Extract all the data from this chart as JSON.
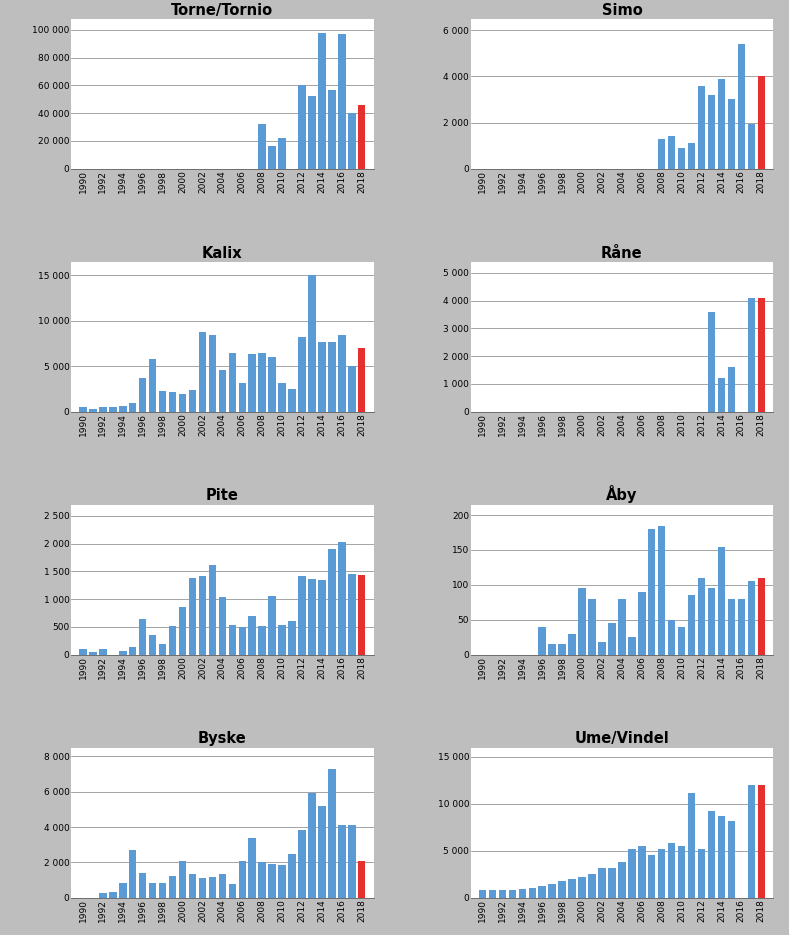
{
  "charts": [
    {
      "title": "Torne/Tornio",
      "years": [
        1990,
        1991,
        1992,
        1993,
        1994,
        1995,
        1996,
        1997,
        1998,
        1999,
        2000,
        2001,
        2002,
        2003,
        2004,
        2005,
        2006,
        2007,
        2008,
        2009,
        2010,
        2011,
        2012,
        2013,
        2014,
        2015,
        2016,
        2017,
        2018
      ],
      "values": [
        0,
        0,
        0,
        0,
        0,
        0,
        0,
        0,
        0,
        0,
        0,
        0,
        0,
        0,
        0,
        0,
        0,
        0,
        32000,
        16000,
        22000,
        0,
        60000,
        52000,
        98000,
        57000,
        97000,
        40000,
        46000
      ],
      "red_years": [
        2018
      ],
      "yticks": [
        0,
        20000,
        40000,
        60000,
        80000,
        100000
      ],
      "ylim": [
        0,
        108000
      ],
      "yticklabels": [
        "0",
        "20 000",
        "40 000",
        "60 000",
        "80 000",
        "100 000"
      ]
    },
    {
      "title": "Simo",
      "years": [
        1990,
        1991,
        1992,
        1993,
        1994,
        1995,
        1996,
        1997,
        1998,
        1999,
        2000,
        2001,
        2002,
        2003,
        2004,
        2005,
        2006,
        2007,
        2008,
        2009,
        2010,
        2011,
        2012,
        2013,
        2014,
        2015,
        2016,
        2017,
        2018
      ],
      "values": [
        0,
        0,
        0,
        0,
        0,
        0,
        0,
        0,
        0,
        0,
        0,
        0,
        0,
        0,
        0,
        0,
        0,
        0,
        1300,
        1400,
        900,
        1100,
        3600,
        3200,
        3900,
        3000,
        5400,
        1950,
        4000
      ],
      "red_years": [
        2018
      ],
      "yticks": [
        0,
        2000,
        4000,
        6000
      ],
      "ylim": [
        0,
        6500
      ],
      "yticklabels": [
        "0",
        "2 000",
        "4 000",
        "6 000"
      ]
    },
    {
      "title": "Kalix",
      "years": [
        1990,
        1991,
        1992,
        1993,
        1994,
        1995,
        1996,
        1997,
        1998,
        1999,
        2000,
        2001,
        2002,
        2003,
        2004,
        2005,
        2006,
        2007,
        2008,
        2009,
        2010,
        2011,
        2012,
        2013,
        2014,
        2015,
        2016,
        2017,
        2018
      ],
      "values": [
        500,
        300,
        500,
        500,
        600,
        900,
        3700,
        5800,
        2300,
        2200,
        1900,
        2400,
        8800,
        8400,
        4600,
        6400,
        3100,
        6300,
        6500,
        6000,
        3100,
        2500,
        8200,
        15000,
        7700,
        7700,
        8400,
        5000,
        7000
      ],
      "red_years": [
        2018
      ],
      "yticks": [
        0,
        5000,
        10000,
        15000
      ],
      "ylim": [
        0,
        16500
      ],
      "yticklabels": [
        "0",
        "5 000",
        "10 000",
        "15 000"
      ]
    },
    {
      "title": "Råne",
      "years": [
        1990,
        1991,
        1992,
        1993,
        1994,
        1995,
        1996,
        1997,
        1998,
        1999,
        2000,
        2001,
        2002,
        2003,
        2004,
        2005,
        2006,
        2007,
        2008,
        2009,
        2010,
        2011,
        2012,
        2013,
        2014,
        2015,
        2016,
        2017,
        2018
      ],
      "values": [
        0,
        0,
        0,
        0,
        0,
        0,
        0,
        0,
        0,
        0,
        0,
        0,
        0,
        0,
        0,
        0,
        0,
        0,
        0,
        0,
        0,
        0,
        0,
        3600,
        1200,
        1600,
        0,
        4100,
        4100
      ],
      "red_years": [
        2018
      ],
      "yticks": [
        0,
        1000,
        2000,
        3000,
        4000,
        5000
      ],
      "ylim": [
        0,
        5400
      ],
      "yticklabels": [
        "0",
        "1 000",
        "2 000",
        "3 000",
        "4 000",
        "5 000"
      ]
    },
    {
      "title": "Pite",
      "years": [
        1990,
        1991,
        1992,
        1993,
        1994,
        1995,
        1996,
        1997,
        1998,
        1999,
        2000,
        2001,
        2002,
        2003,
        2004,
        2005,
        2006,
        2007,
        2008,
        2009,
        2010,
        2011,
        2012,
        2013,
        2014,
        2015,
        2016,
        2017,
        2018
      ],
      "values": [
        100,
        50,
        100,
        0,
        70,
        130,
        650,
        350,
        200,
        520,
        860,
        1380,
        1420,
        1620,
        1030,
        530,
        500,
        700,
        520,
        1060,
        530,
        610,
        1420,
        1360,
        1350,
        1900,
        2030,
        1460,
        1440
      ],
      "red_years": [
        2018
      ],
      "yticks": [
        0,
        500,
        1000,
        1500,
        2000,
        2500
      ],
      "ylim": [
        0,
        2700
      ],
      "yticklabels": [
        "0",
        "500",
        "1 000",
        "1 500",
        "2 000",
        "2 500"
      ]
    },
    {
      "title": "Åby",
      "years": [
        1990,
        1991,
        1992,
        1993,
        1994,
        1995,
        1996,
        1997,
        1998,
        1999,
        2000,
        2001,
        2002,
        2003,
        2004,
        2005,
        2006,
        2007,
        2008,
        2009,
        2010,
        2011,
        2012,
        2013,
        2014,
        2015,
        2016,
        2017,
        2018
      ],
      "values": [
        0,
        0,
        0,
        0,
        0,
        0,
        40,
        15,
        15,
        30,
        95,
        80,
        18,
        45,
        80,
        25,
        90,
        180,
        185,
        50,
        40,
        85,
        110,
        95,
        155,
        80,
        80,
        105,
        110
      ],
      "red_years": [
        2018
      ],
      "yticks": [
        0,
        50,
        100,
        150,
        200
      ],
      "ylim": [
        0,
        215
      ],
      "yticklabels": [
        "0",
        "50",
        "100",
        "150",
        "200"
      ]
    },
    {
      "title": "Byske",
      "years": [
        1990,
        1991,
        1992,
        1993,
        1994,
        1995,
        1996,
        1997,
        1998,
        1999,
        2000,
        2001,
        2002,
        2003,
        2004,
        2005,
        2006,
        2007,
        2008,
        2009,
        2010,
        2011,
        2012,
        2013,
        2014,
        2015,
        2016,
        2017,
        2018
      ],
      "values": [
        0,
        0,
        250,
        300,
        850,
        2700,
        1400,
        800,
        850,
        1200,
        2050,
        1350,
        1100,
        1150,
        1350,
        750,
        2100,
        3380,
        2030,
        1900,
        1850,
        2460,
        3850,
        5940,
        5200,
        7300,
        4100,
        4100,
        2100
      ],
      "red_years": [
        2018
      ],
      "yticks": [
        0,
        2000,
        4000,
        6000,
        8000
      ],
      "ylim": [
        0,
        8500
      ],
      "yticklabels": [
        "0",
        "2 000",
        "4 000",
        "6 000",
        "8 000"
      ]
    },
    {
      "title": "Ume/Vindel",
      "years": [
        1990,
        1991,
        1992,
        1993,
        1994,
        1995,
        1996,
        1997,
        1998,
        1999,
        2000,
        2001,
        2002,
        2003,
        2004,
        2005,
        2006,
        2007,
        2008,
        2009,
        2010,
        2011,
        2012,
        2013,
        2014,
        2015,
        2016,
        2017,
        2018
      ],
      "values": [
        800,
        800,
        800,
        800,
        900,
        1000,
        1200,
        1500,
        1800,
        2000,
        2200,
        2500,
        3200,
        3200,
        3800,
        5200,
        5500,
        4500,
        5200,
        5800,
        5500,
        11200,
        5200,
        9200,
        8700,
        8200,
        0,
        12000,
        12000
      ],
      "red_years": [
        2018
      ],
      "yticks": [
        0,
        5000,
        10000,
        15000
      ],
      "ylim": [
        0,
        16000
      ],
      "yticklabels": [
        "0",
        "5 000",
        "10 000",
        "15 000"
      ]
    }
  ],
  "bar_color": "#5B9BD5",
  "red_color": "#E63030",
  "background_color": "#BEBEBE",
  "panel_background": "#FFFFFF",
  "grid_color": "#808080"
}
